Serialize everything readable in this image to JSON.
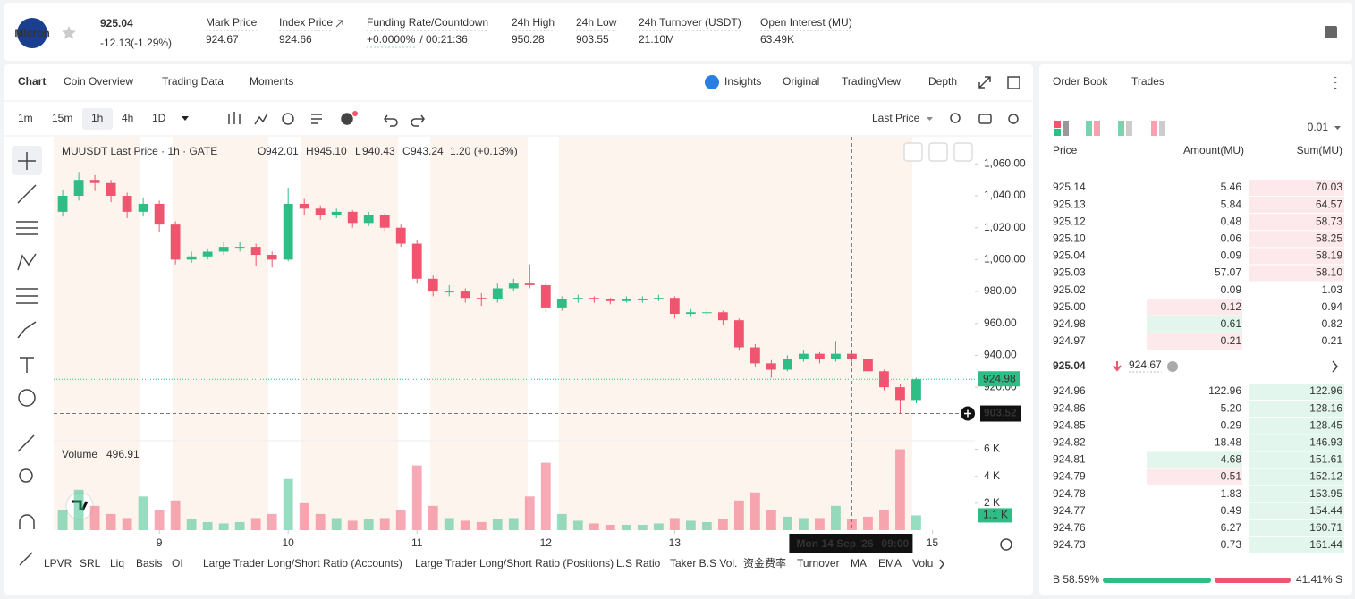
{
  "header": {
    "logo": "Micron",
    "price": "925.04",
    "change": "-12.13(-1.29%)",
    "stats": [
      {
        "label": "Mark Price",
        "value": "924.67"
      },
      {
        "label": "Index Price",
        "value": "924.66"
      },
      {
        "label": "Funding Rate/Countdown",
        "value": "+0.0000%",
        "extra": "/ 00:21:36"
      },
      {
        "label": "24h High",
        "value": "950.28"
      },
      {
        "label": "24h Low",
        "value": "903.55"
      },
      {
        "label": "24h Turnover (USDT)",
        "value": "21.10M"
      },
      {
        "label": "Open Interest (MU)",
        "value": "63.49K"
      }
    ]
  },
  "tabs": {
    "left": [
      "Chart",
      "Coin Overview",
      "Trading Data",
      "Moments"
    ],
    "right": [
      "Insights",
      "Original",
      "TradingView",
      "Depth"
    ]
  },
  "toolbar": {
    "intervals": [
      "1m",
      "15m",
      "1h",
      "4h",
      "1D"
    ],
    "price_type": "Last Price"
  },
  "indicators": [
    "LPVR",
    "SRL",
    "Liq",
    "Basis",
    "OI",
    "Large Trader Long/Short Ratio (Accounts)",
    "Large Trader Long/Short Ratio (Positions)",
    "L.S Ratio",
    "Taker B.S Vol.",
    "资金费率",
    "Turnover",
    "MA",
    "EMA",
    "Volu"
  ],
  "chart_data": {
    "type": "candlestick",
    "title": "MUUSDT Last Price · 1h · GATE",
    "ohlc": [
      {
        "key": "O",
        "value": "942.01"
      },
      {
        "key": "H",
        "value": "945.10"
      },
      {
        "key": "L",
        "value": "940.43"
      },
      {
        "key": "C",
        "value": "943.24"
      }
    ],
    "change": "1.20 (+0.13%)",
    "x": [
      8.25,
      8.375,
      8.5,
      8.625,
      8.75,
      8.875,
      9,
      9.125,
      9.25,
      9.375,
      9.5,
      9.625,
      9.75,
      9.875,
      10,
      10.125,
      10.25,
      10.375,
      10.5,
      10.625,
      10.75,
      10.875,
      11,
      11.125,
      11.25,
      11.375,
      11.5,
      11.625,
      11.75,
      11.875,
      12,
      12.125,
      12.25,
      12.375,
      12.5,
      12.625,
      12.75,
      12.875,
      13,
      13.125,
      13.25,
      13.375,
      13.5,
      13.625,
      13.75,
      13.875,
      14,
      14.125,
      14.25,
      14.375,
      14.5,
      14.625,
      14.75,
      14.875
    ],
    "candles": [
      [
        1030,
        1044,
        1027,
        1040
      ],
      [
        1040,
        1055,
        1037,
        1050
      ],
      [
        1050,
        1053,
        1043,
        1048
      ],
      [
        1048,
        1050,
        1036,
        1040
      ],
      [
        1040,
        1042,
        1026,
        1030
      ],
      [
        1030,
        1039,
        1027,
        1035
      ],
      [
        1035,
        1037,
        1017,
        1022
      ],
      [
        1022,
        1024,
        997,
        1000
      ],
      [
        1000,
        1005,
        998,
        1002
      ],
      [
        1002,
        1007,
        1000,
        1005
      ],
      [
        1005,
        1011,
        1003,
        1008
      ],
      [
        1008,
        1011,
        1005,
        1008
      ],
      [
        1008,
        1010,
        996,
        1003
      ],
      [
        1003,
        1005,
        995,
        1000
      ],
      [
        1000,
        1045,
        999,
        1035
      ],
      [
        1035,
        1038,
        1028,
        1032
      ],
      [
        1032,
        1034,
        1025,
        1028
      ],
      [
        1028,
        1032,
        1026,
        1030
      ],
      [
        1030,
        1031,
        1020,
        1023
      ],
      [
        1023,
        1030,
        1021,
        1028
      ],
      [
        1028,
        1029,
        1018,
        1020
      ],
      [
        1020,
        1022,
        1008,
        1010
      ],
      [
        1010,
        1012,
        985,
        988
      ],
      [
        988,
        990,
        977,
        980
      ],
      [
        980,
        984,
        977,
        980
      ],
      [
        980,
        982,
        973,
        976
      ],
      [
        976,
        979,
        971,
        975
      ],
      [
        975,
        985,
        973,
        982
      ],
      [
        982,
        988,
        980,
        985
      ],
      [
        985,
        997,
        982,
        984
      ],
      [
        984,
        986,
        967,
        970
      ],
      [
        970,
        977,
        968,
        975
      ],
      [
        975,
        978,
        973,
        976
      ],
      [
        976,
        977,
        973,
        975
      ],
      [
        975,
        976,
        972,
        974
      ],
      [
        974,
        977,
        973,
        975
      ],
      [
        975,
        977,
        973,
        975
      ],
      [
        975,
        978,
        974,
        976
      ],
      [
        976,
        977,
        963,
        966
      ],
      [
        966,
        969,
        964,
        967
      ],
      [
        967,
        969,
        965,
        967
      ],
      [
        967,
        968,
        959,
        962
      ],
      [
        962,
        963,
        943,
        945
      ],
      [
        945,
        947,
        933,
        935
      ],
      [
        935,
        937,
        926,
        931
      ],
      [
        931,
        940,
        930,
        938
      ],
      [
        938,
        943,
        936,
        941
      ],
      [
        941,
        942,
        935,
        938
      ],
      [
        938,
        949,
        936,
        941
      ],
      [
        941,
        943,
        936,
        938
      ],
      [
        938,
        939,
        928,
        930
      ],
      [
        930,
        931,
        918,
        920
      ],
      [
        920,
        922,
        903.5,
        912
      ],
      [
        912,
        926,
        910,
        924.98
      ]
    ],
    "volumes": [
      1500,
      3000,
      1800,
      1200,
      900,
      2500,
      1500,
      2200,
      800,
      600,
      500,
      600,
      900,
      1200,
      3800,
      2000,
      1200,
      900,
      700,
      800,
      900,
      1500,
      4800,
      1800,
      900,
      700,
      600,
      800,
      900,
      2500,
      5000,
      1200,
      700,
      500,
      400,
      400,
      400,
      500,
      900,
      700,
      600,
      800,
      2200,
      2800,
      1500,
      1000,
      900,
      900,
      1800,
      800,
      1000,
      1500,
      6000,
      1100
    ],
    "volume_label": "Volume",
    "volume_value": "496.91",
    "volume_last_label": "1.1 K",
    "xlim": [
      8.18,
      15.33
    ],
    "xticks": [
      9,
      10,
      11,
      12,
      13,
      15
    ],
    "ylim": [
      887,
      1077
    ],
    "yticks": [
      {
        "value": 920,
        "label": "920.00"
      },
      {
        "value": 940,
        "label": "940.00"
      },
      {
        "value": 960,
        "label": "960.00"
      },
      {
        "value": 980,
        "label": "980.00"
      },
      {
        "value": 1000,
        "label": "1,000.00"
      },
      {
        "value": 1020,
        "label": "1,020.00"
      },
      {
        "value": 1040,
        "label": "1,040.00"
      },
      {
        "value": 1060,
        "label": "1,060.00"
      }
    ],
    "volume_ylim": [
      0,
      6500
    ],
    "volume_yticks": [
      {
        "value": 2000,
        "label": "2 K"
      },
      {
        "value": 4000,
        "label": "4 K"
      },
      {
        "value": 6000,
        "label": "6 K"
      }
    ],
    "crosshair": {
      "x": 14.375,
      "price": 903.52,
      "date_label": "Mon 14 Sep '26",
      "time_label": "09:00"
    },
    "up_color": "#2ebd85",
    "down_color": "#f0546e"
  },
  "order_book": {
    "tabs": [
      "Order Book",
      "Trades"
    ],
    "precision": "0.01",
    "headers": [
      "Price",
      "Amount(MU)",
      "Sum(MU)"
    ],
    "asks": [
      [
        "925.14",
        "5.46",
        "70.03"
      ],
      [
        "925.13",
        "5.84",
        "64.57"
      ],
      [
        "925.12",
        "0.48",
        "58.73"
      ],
      [
        "925.10",
        "0.06",
        "58.25"
      ],
      [
        "925.04",
        "0.09",
        "58.19"
      ],
      [
        "925.03",
        "57.07",
        "58.10"
      ],
      [
        "925.02",
        "0.09",
        "1.03"
      ],
      [
        "925.00",
        "0.12",
        "0.94"
      ],
      [
        "924.98",
        "0.61",
        "0.82"
      ],
      [
        "924.97",
        "0.21",
        "0.21"
      ]
    ],
    "mid_price": "925.04",
    "mark_price": "924.67",
    "bids": [
      [
        "924.96",
        "122.96",
        "122.96"
      ],
      [
        "924.86",
        "5.20",
        "128.16"
      ],
      [
        "924.85",
        "0.29",
        "128.45"
      ],
      [
        "924.82",
        "18.48",
        "146.93"
      ],
      [
        "924.81",
        "4.68",
        "151.61"
      ],
      [
        "924.79",
        "0.51",
        "152.12"
      ],
      [
        "924.78",
        "1.83",
        "153.95"
      ],
      [
        "924.77",
        "0.49",
        "154.44"
      ],
      [
        "924.76",
        "6.27",
        "160.71"
      ],
      [
        "924.73",
        "0.73",
        "161.44"
      ]
    ],
    "buy_label": "B 58.59%",
    "buy": 58.59,
    "sell_label": "41.41% S",
    "sell": 41.41
  }
}
